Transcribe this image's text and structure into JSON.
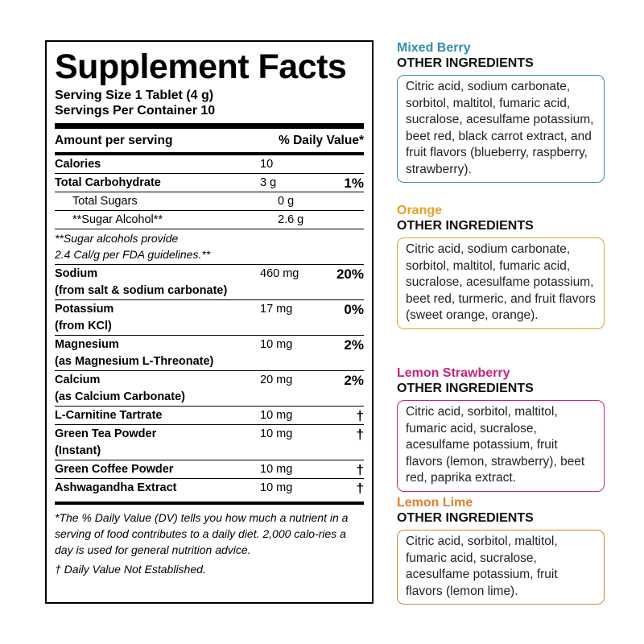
{
  "facts": {
    "title": "Supplement Facts",
    "serving_size": "Serving Size 1 Tablet (4 g)",
    "servings_per_container": "Servings Per Container 10",
    "amount_header": "Amount per serving",
    "dv_header": "% Daily Value*",
    "rows": [
      {
        "name": "Calories",
        "sub": "",
        "amount": "10",
        "dv": ""
      },
      {
        "name": "Total Carbohydrate",
        "sub": "",
        "amount": "3 g",
        "dv": "1%"
      },
      {
        "name": "Total Sugars",
        "sub": "",
        "amount": "0 g",
        "dv": ""
      },
      {
        "name": "**Sugar Alcohol**",
        "sub": "",
        "amount": "2.6 g",
        "dv": ""
      },
      {
        "name": "Sodium",
        "sub": "(from salt & sodium carbonate)",
        "amount": "460 mg",
        "dv": "20%"
      },
      {
        "name": "Potassium",
        "sub": "(from KCl)",
        "amount": "17 mg",
        "dv": "0%"
      },
      {
        "name": "Magnesium",
        "sub": "(as Magnesium L-Threonate)",
        "amount": "10 mg",
        "dv": "2%"
      },
      {
        "name": "Calcium",
        "sub": "(as Calcium Carbonate)",
        "amount": "20 mg",
        "dv": "2%"
      },
      {
        "name": "L-Carnitine Tartrate",
        "sub": "",
        "amount": "10 mg",
        "dv": "†"
      },
      {
        "name": "Green Tea Powder",
        "sub": "(Instant)",
        "amount": "10 mg",
        "dv": "†"
      },
      {
        "name": "Green Coffee Powder",
        "sub": "",
        "amount": "10 mg",
        "dv": "†"
      },
      {
        "name": "Ashwagandha Extract",
        "sub": "",
        "amount": "10 mg",
        "dv": "†"
      }
    ],
    "sugar_note_line1": "**Sugar alcohols provide",
    "sugar_note_line2": "2.4 Cal/g per FDA guidelines.**",
    "footnote_dv": "*The % Daily Value (DV) tells you how much a nutrient in a serving of food contributes to a daily diet. 2,000 calo-ries a day is used for general nutrition advice.",
    "footnote_dagger": "† Daily Value Not Established."
  },
  "flavors": [
    {
      "name": "Mixed Berry",
      "heading": "OTHER INGREDIENTS",
      "color": "#2f8fb0",
      "ingredients": "Citric acid, sodium carbonate, sorbitol, maltitol, fumaric acid, sucralose, acesulfame potassium, beet red, black carrot extract, and fruit flavors (blueberry, raspberry, strawberry)."
    },
    {
      "name": "Orange",
      "heading": "OTHER INGREDIENTS",
      "color": "#e8a020",
      "ingredients": "Citric acid, sodium carbonate, sorbitol, maltitol, fumaric acid, sucralose, acesulfame potassium, beet red, turmeric, and fruit flavors (sweet orange, orange)."
    },
    {
      "name": "Lemon Strawberry",
      "heading": "OTHER INGREDIENTS",
      "color": "#c2267e",
      "ingredients": "Citric acid, sorbitol, maltitol, fumaric acid, sucralose, acesulfame potassium, fruit flavors (lemon, strawberry), beet red, paprika extract."
    },
    {
      "name": "Lemon Lime",
      "heading": "OTHER INGREDIENTS",
      "color": "#e0802a",
      "ingredients": "Citric acid, sorbitol, maltitol, fumaric acid, sucralose, acesulfame potassium, fruit flavors (lemon lime)."
    }
  ]
}
